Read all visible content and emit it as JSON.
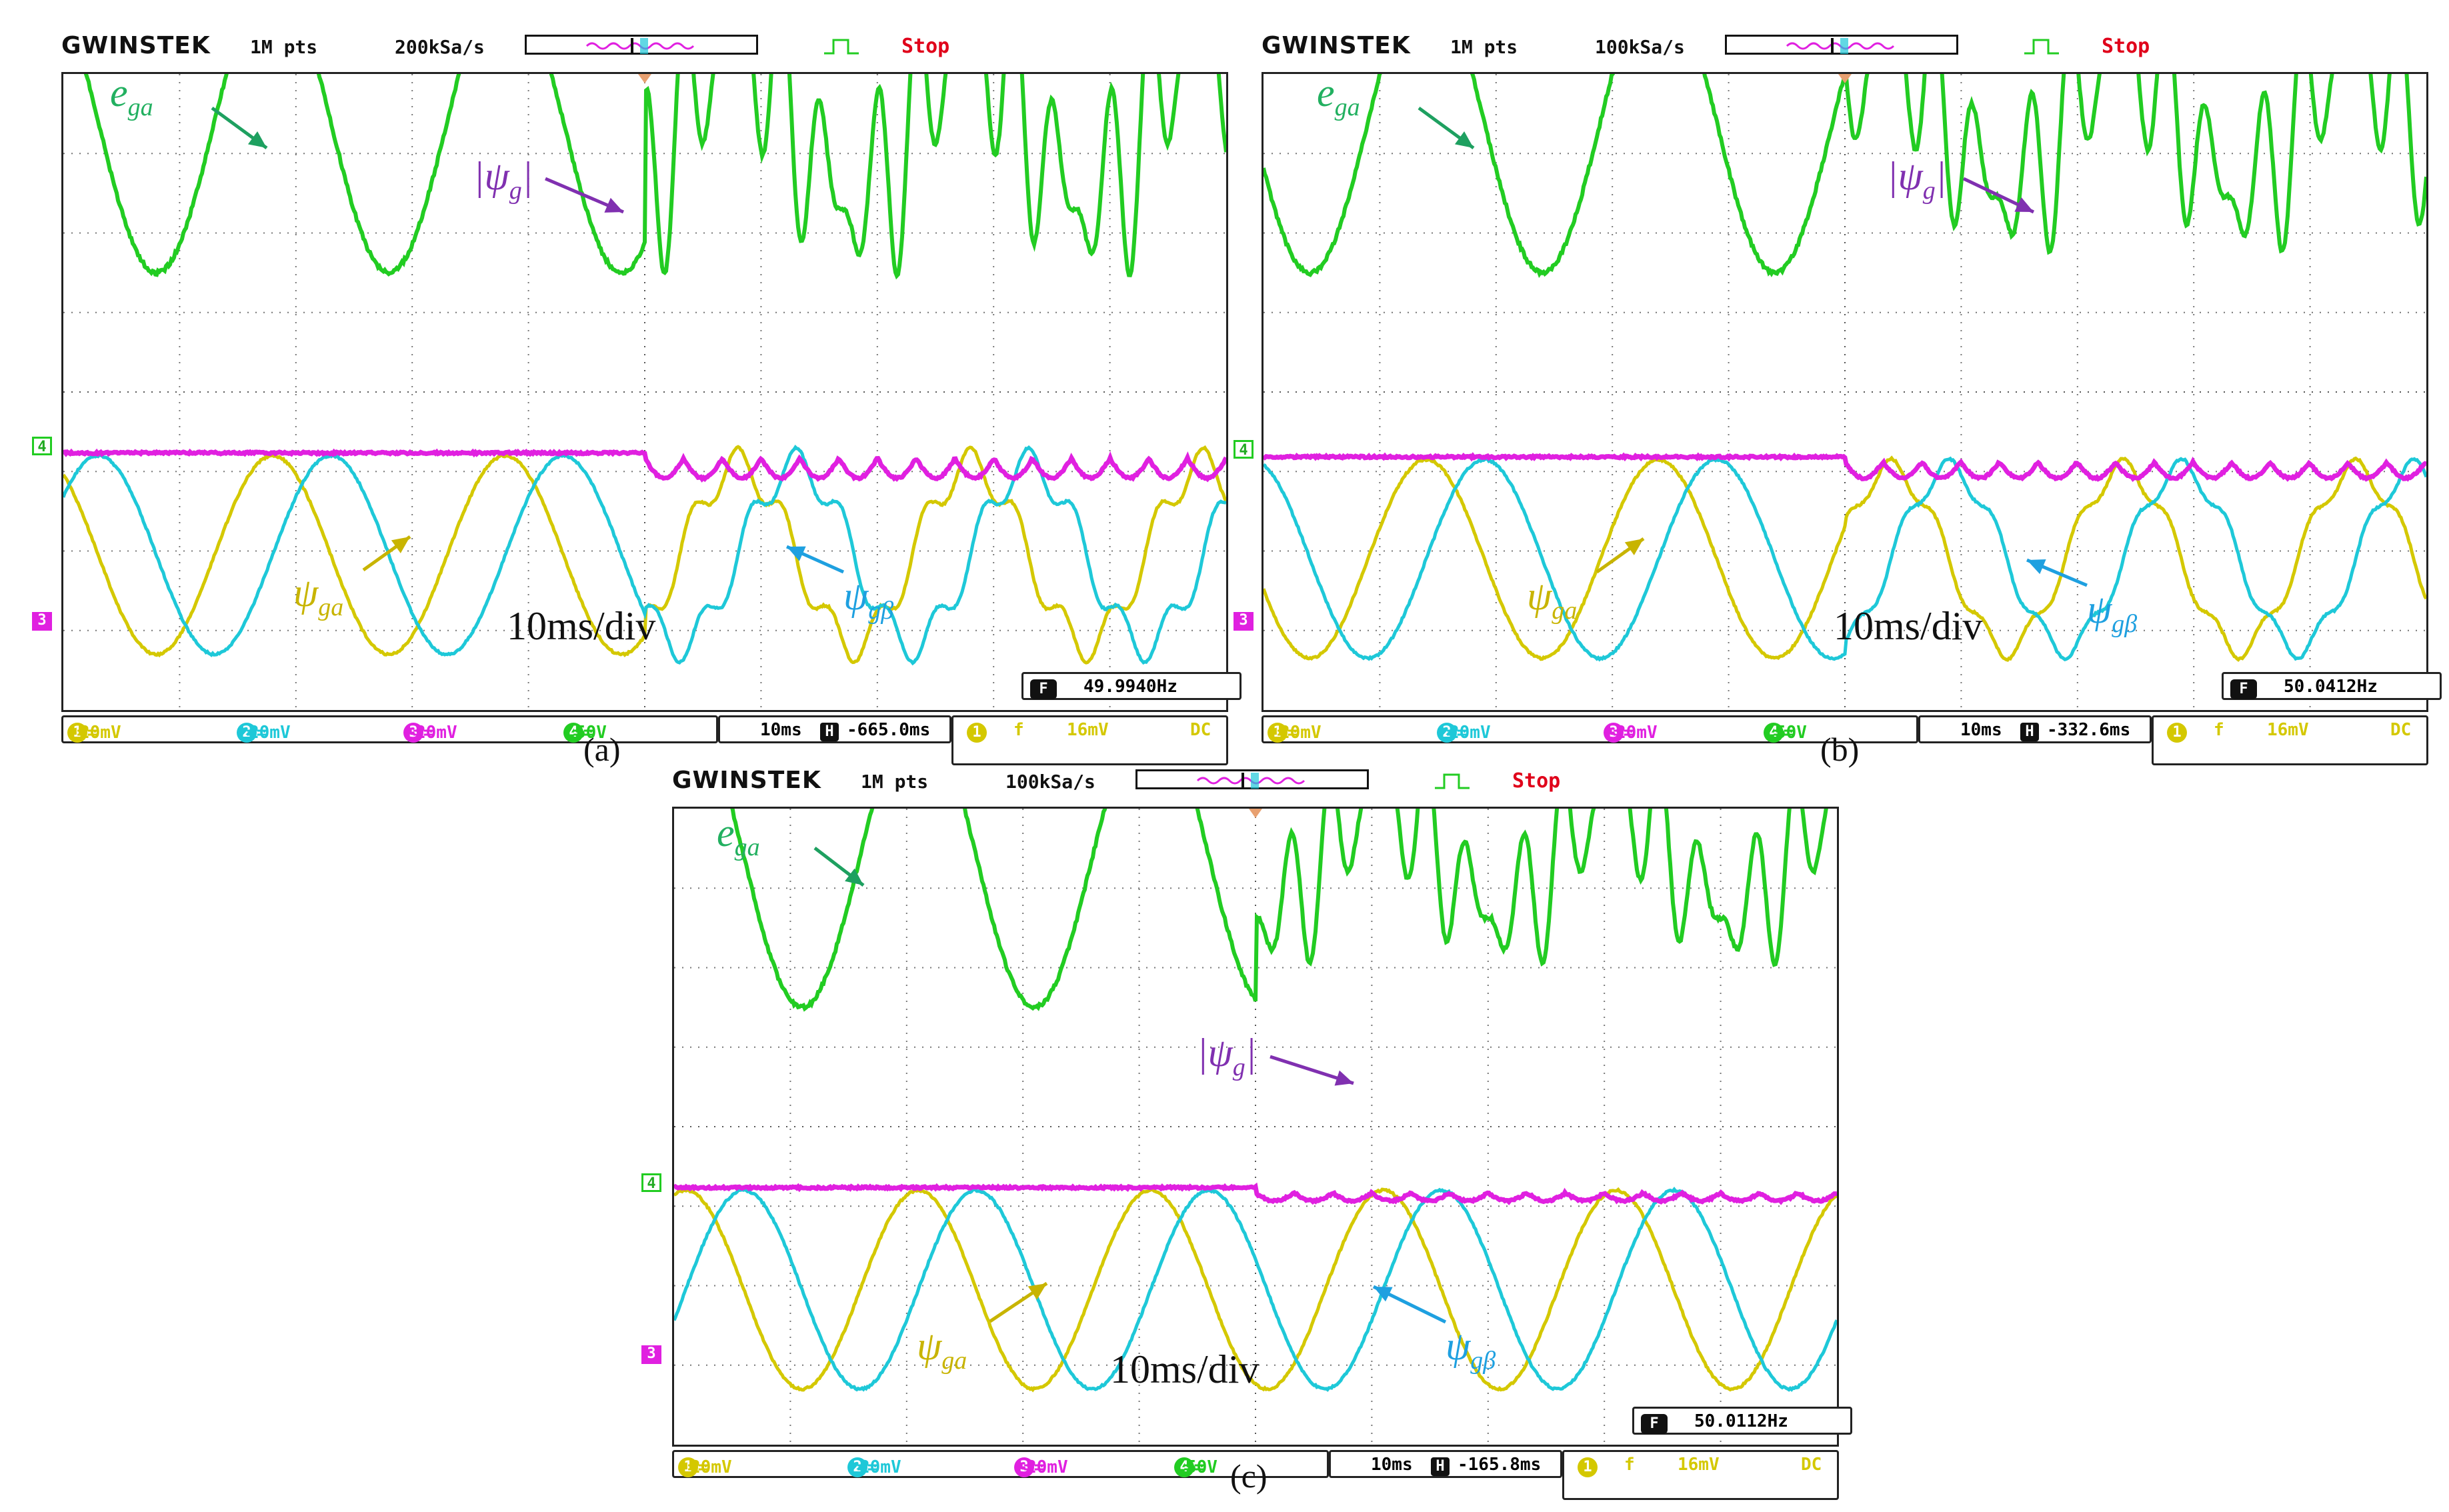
{
  "header": {
    "brand": "GWINSTEK",
    "points": "1M pts",
    "stop": "Stop"
  },
  "channels": [
    {
      "num": "1",
      "coupling": "==",
      "scale": "20mV",
      "color": "#d4c800"
    },
    {
      "num": "2",
      "coupling": "==",
      "scale": "20mV",
      "color": "#1ec8d8"
    },
    {
      "num": "3",
      "coupling": "==",
      "scale": "20mV",
      "color": "#e020e0"
    },
    {
      "num": "4",
      "coupling": "==",
      "scale": "50V",
      "color": "#22cc22"
    }
  ],
  "trigger": {
    "source": "1",
    "slope": "f",
    "level": "16mV",
    "coupling": "DC"
  },
  "colors": {
    "e_ga": "#22cc22",
    "psi_ga": "#d4c800",
    "psi_gb": "#1ec8d8",
    "psi_mag": "#e020e0"
  },
  "annotations": {
    "e_ga_base": "e",
    "e_ga_sub": "ga",
    "psi_ga_base": "ψ",
    "psi_ga_sub": "ga",
    "psi_gb_base": "ψ",
    "psi_gb_sub": "gβ",
    "psi_mag_base": "|ψ",
    "psi_mag_sub": "g",
    "psi_mag_close": "|",
    "timebase_label": "10ms/div"
  },
  "panels": [
    {
      "caption": "(a)",
      "rate": "200kSa/s",
      "timebase": "10ms",
      "offset": "-665.0ms",
      "frequency": "49.9940Hz"
    },
    {
      "caption": "(b)",
      "rate": "100kSa/s",
      "timebase": "10ms",
      "offset": "-332.6ms",
      "frequency": "50.0412Hz"
    },
    {
      "caption": "(c)",
      "rate": "100kSa/s",
      "timebase": "10ms",
      "offset": "-165.8ms",
      "frequency": "50.0112Hz"
    }
  ],
  "chart_data": [
    {
      "type": "line",
      "title": "",
      "xlabel": "10ms/div",
      "x_divisions": 10,
      "time_per_div_ms": 10,
      "frequency_hz": 49.994,
      "disturbance_time_ms": 50,
      "series": [
        {
          "name": "e_ga",
          "description_values": "sinusoid before 50ms, distorted harmonic-rich after 50ms",
          "amplitude_div": 1.9,
          "offset_div": 3.4
        },
        {
          "name": "|ψg|",
          "values_before": 0.0,
          "ripple_after_div": 0.25,
          "offset_div": 0.45
        },
        {
          "name": "ψga",
          "amplitude_div": 2.5,
          "offset_div": -2.05
        },
        {
          "name": "ψgβ",
          "amplitude_div": 2.5,
          "offset_div": -2.05
        }
      ]
    },
    {
      "type": "line",
      "title": "",
      "xlabel": "10ms/div",
      "x_divisions": 10,
      "time_per_div_ms": 10,
      "frequency_hz": 50.0412,
      "disturbance_time_ms": 50,
      "series": [
        {
          "name": "e_ga",
          "amplitude_div": 1.9,
          "offset_div": 3.4
        },
        {
          "name": "|ψg|",
          "ripple_after_div": 0.2,
          "offset_div": 0.4
        },
        {
          "name": "ψga",
          "amplitude_div": 2.5,
          "offset_div": -2.1
        },
        {
          "name": "ψgβ",
          "amplitude_div": 2.5,
          "offset_div": -2.1
        }
      ]
    },
    {
      "type": "line",
      "title": "",
      "xlabel": "10ms/div",
      "x_divisions": 10,
      "time_per_div_ms": 10,
      "frequency_hz": 50.0112,
      "disturbance_time_ms": 50,
      "series": [
        {
          "name": "e_ga",
          "amplitude_div": 1.9,
          "offset_div": 3.4
        },
        {
          "name": "|ψg|",
          "ripple_after_div": 0.1,
          "offset_div": 0.45
        },
        {
          "name": "ψga",
          "amplitude_div": 2.5,
          "offset_div": -2.05
        },
        {
          "name": "ψgβ",
          "amplitude_div": 2.5,
          "offset_div": -2.05
        }
      ]
    }
  ]
}
